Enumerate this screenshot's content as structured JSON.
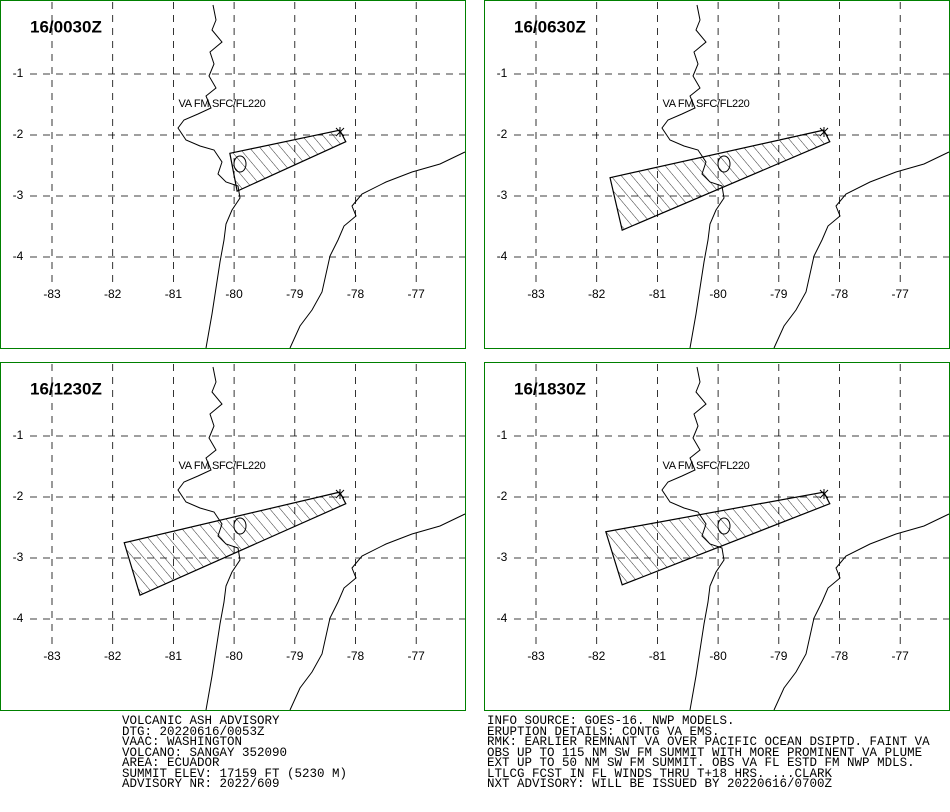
{
  "lon_ticks": [
    -83,
    -82,
    -81,
    -80,
    -79,
    -78,
    -77
  ],
  "lat_ticks": [
    -1,
    -2,
    -3,
    -4
  ],
  "panels": [
    {
      "time": "16/0030Z",
      "label": "VA FM SFC/FL220",
      "ash_polygon": [
        [
          -78.26,
          -1.92
        ],
        [
          -78.16,
          -2.11
        ],
        [
          -79.95,
          -2.92
        ],
        [
          -80.07,
          -2.3
        ]
      ]
    },
    {
      "time": "16/0630Z",
      "label": "VA FM SFC/FL220",
      "ash_polygon": [
        [
          -78.26,
          -1.92
        ],
        [
          -78.16,
          -2.11
        ],
        [
          -81.58,
          -3.56
        ],
        [
          -81.78,
          -2.7
        ]
      ]
    },
    {
      "time": "16/1230Z",
      "label": "VA FM SFC/FL220",
      "ash_polygon": [
        [
          -78.26,
          -1.92
        ],
        [
          -78.16,
          -2.11
        ],
        [
          -81.55,
          -3.61
        ],
        [
          -81.81,
          -2.75
        ]
      ]
    },
    {
      "time": "16/1830Z",
      "label": "VA FM SFC/FL220",
      "ash_polygon": [
        [
          -78.26,
          -1.92
        ],
        [
          -78.16,
          -2.11
        ],
        [
          -81.58,
          -3.44
        ],
        [
          -81.85,
          -2.57
        ]
      ]
    }
  ],
  "advisory_left": [
    "VOLCANIC ASH ADVISORY",
    "DTG: 20220616/0053Z",
    "VAAC: WASHINGTON",
    "VOLCANO: SANGAY 352090",
    "AREA: ECUADOR",
    "SUMMIT ELEV: 17159 FT (5230 M)",
    "ADVISORY NR: 2022/609"
  ],
  "advisory_right": [
    "INFO SOURCE: GOES-16. NWP MODELS.",
    "ERUPTION DETAILS: CONTG VA EMS.",
    "RMK: EARLIER REMNANT VA OVER PACIFIC OCEAN DSIPTD. FAINT VA",
    "OBS UP TO 115 NM SW FM SUMMIT WITH MORE PROMINENT VA PLUME",
    "EXT UP TO 50 NM SW FM SUMMIT. OBS VA FL ESTD FM NWP MDLS.",
    "LTLCG FCST IN FL WINDS THRU T+18 HRS. ...CLARK",
    "NXT ADVISORY: WILL BE ISSUED BY 20220616/0700Z"
  ]
}
